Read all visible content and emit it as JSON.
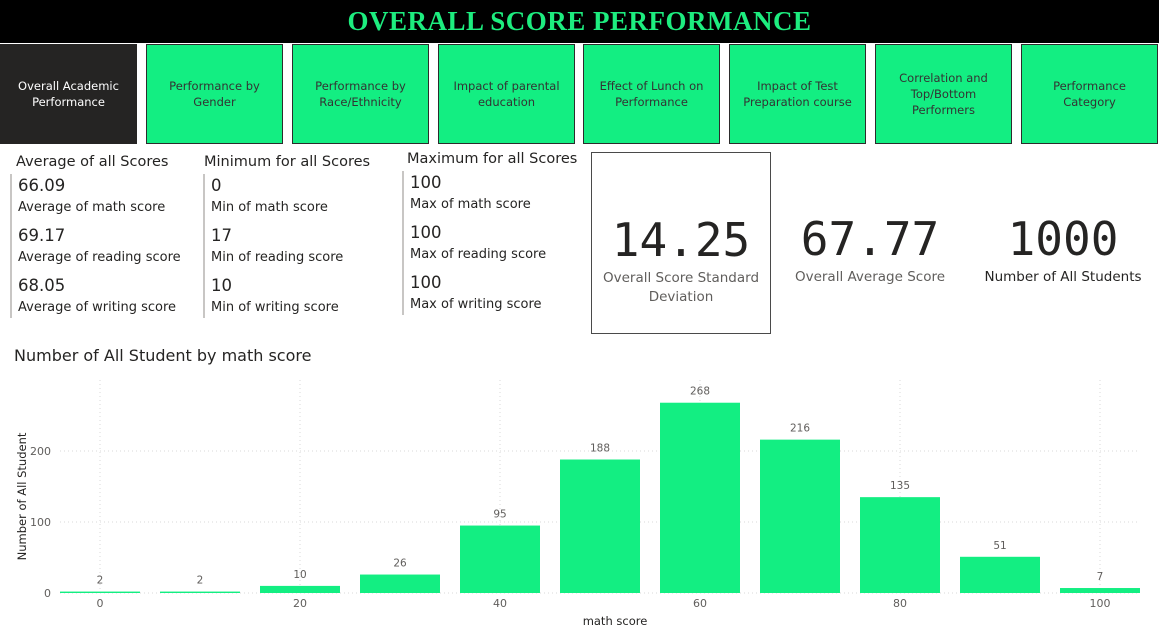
{
  "header": {
    "title": "OVERALL SCORE PERFORMANCE"
  },
  "colors": {
    "accent": "#13ee82",
    "active_tab": "#252423",
    "header_bg": "#000000",
    "title_text": "#1ded7f"
  },
  "nav": {
    "tabs": [
      {
        "label": "Overall Academic Performance",
        "active": true
      },
      {
        "label": "Performance by Gender",
        "active": false
      },
      {
        "label": "Performance by Race/Ethnicity",
        "active": false
      },
      {
        "label": "Impact of parental education",
        "active": false
      },
      {
        "label": "Effect of Lunch on Performance",
        "active": false
      },
      {
        "label": "Impact of Test Preparation course",
        "active": false
      },
      {
        "label": "Correlation and Top/Bottom Performers",
        "active": false
      },
      {
        "label": "Performance Category",
        "active": false
      }
    ]
  },
  "averages": {
    "heading": "Average of all Scores",
    "items": [
      {
        "value": "66.09",
        "label": "Average of math score"
      },
      {
        "value": "69.17",
        "label": "Average of reading score"
      },
      {
        "value": "68.05",
        "label": "Average of writing score"
      }
    ]
  },
  "minimums": {
    "heading": "Minimum for all Scores",
    "items": [
      {
        "value": "0",
        "label": "Min of math score"
      },
      {
        "value": "17",
        "label": "Min of reading score"
      },
      {
        "value": "10",
        "label": "Min of writing score"
      }
    ]
  },
  "maximums": {
    "heading": "Maximum for all Scores",
    "items": [
      {
        "value": "100",
        "label": "Max of math score"
      },
      {
        "value": "100",
        "label": "Max of reading score"
      },
      {
        "value": "100",
        "label": "Max of writing score"
      }
    ]
  },
  "cards": {
    "std_dev": {
      "value": "14.25",
      "label": "Overall Score Standard Deviation"
    },
    "avg": {
      "value": "67.77",
      "label": "Overall Average Score"
    },
    "count": {
      "value": "1000",
      "label": "Number of All Students"
    }
  },
  "chart_data": {
    "type": "bar",
    "title": "Number of All Student by math score",
    "xlabel": "math score",
    "ylabel": "Number of All Student",
    "x": [
      0,
      10,
      20,
      30,
      40,
      50,
      60,
      70,
      80,
      90,
      100
    ],
    "values": [
      2,
      2,
      10,
      26,
      95,
      188,
      268,
      216,
      135,
      51,
      7
    ],
    "x_ticks": [
      0,
      20,
      40,
      60,
      80,
      100
    ],
    "y_ticks": [
      0,
      100,
      200
    ],
    "xlim": [
      -4,
      104
    ],
    "ylim": [
      0,
      300
    ],
    "grid": true,
    "bar_color": "#13ee82"
  }
}
